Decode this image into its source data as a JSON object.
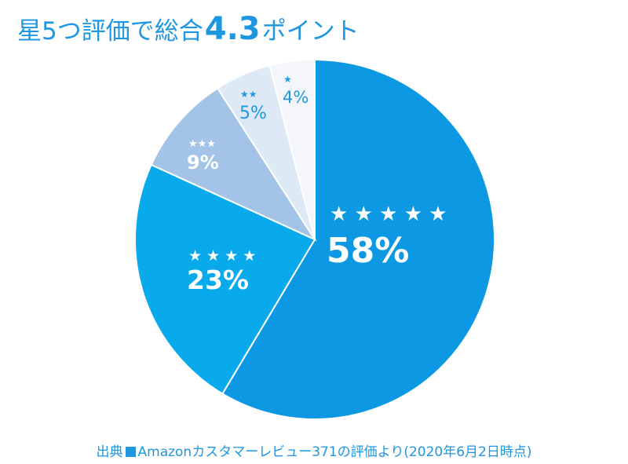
{
  "title": {
    "prefix": "星5つ評価で総合",
    "score": "4.3",
    "suffix": "ポイント"
  },
  "source": {
    "label": "出典",
    "text": "Amazonカスタマーレビュー371の評価より(2020年6月2日時点)"
  },
  "chart_data": {
    "type": "pie",
    "title": "星5つ評価で総合4.3ポイント",
    "start": "12 o'clock",
    "direction": "clockwise",
    "slices": [
      {
        "label": "★ ★ ★ ★ ★",
        "value": 58,
        "value_label": "58%",
        "color": "#0d98e3",
        "text_color": "#ffffff"
      },
      {
        "label": "★ ★ ★ ★",
        "value": 23,
        "value_label": "23%",
        "color": "#09aaeb",
        "text_color": "#ffffff"
      },
      {
        "label": "★★★",
        "value": 9,
        "value_label": "9%",
        "color": "#a3c4e6",
        "text_color": "#ffffff"
      },
      {
        "label": "★★",
        "value": 5,
        "value_label": "5%",
        "color": "#dee9f6",
        "text_color": "#1f96e0"
      },
      {
        "label": "★",
        "value": 4,
        "value_label": "4%",
        "color": "#f4f6fb",
        "text_color": "#1f96e0"
      }
    ]
  }
}
